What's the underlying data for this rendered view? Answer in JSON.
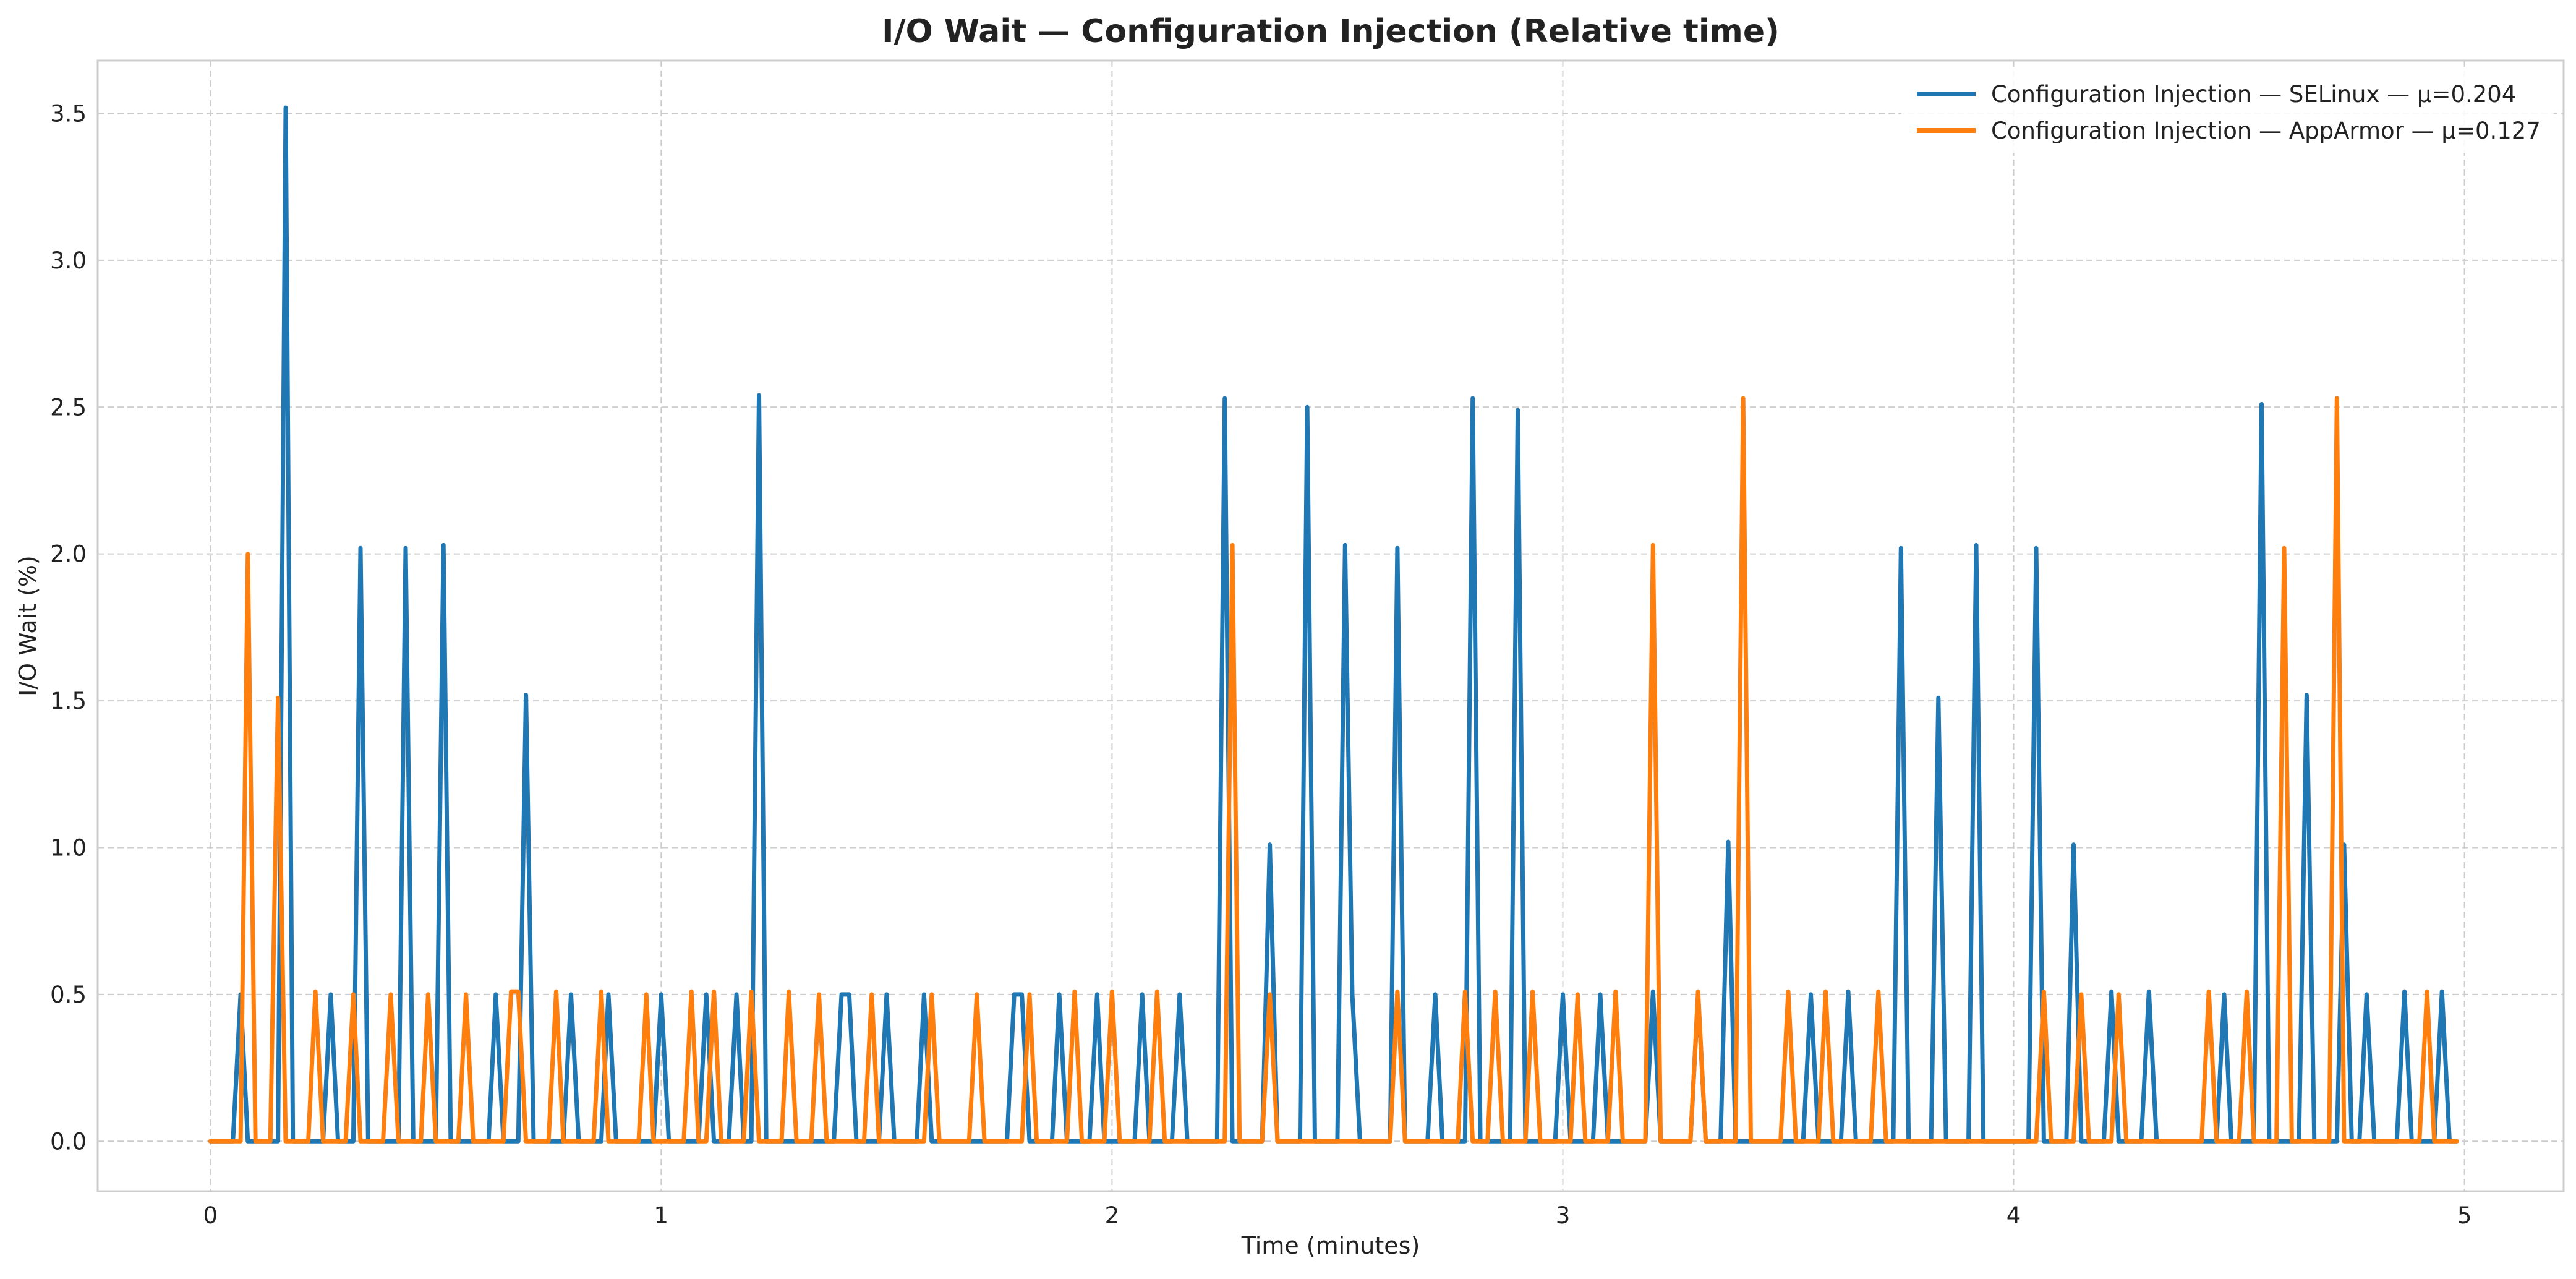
{
  "chart_data": {
    "type": "line",
    "title": "I/O Wait — Configuration Injection (Relative time)",
    "xlabel": "Time (minutes)",
    "ylabel": "I/O Wait (%)",
    "xlim": [
      -0.25,
      5.22
    ],
    "ylim": [
      -0.17,
      3.68
    ],
    "xticks": [
      0,
      1,
      2,
      3,
      4,
      5
    ],
    "xtick_labels": [
      "0",
      "1",
      "2",
      "3",
      "4",
      "5"
    ],
    "yticks": [
      0.0,
      0.5,
      1.0,
      1.5,
      2.0,
      2.5,
      3.0,
      3.5
    ],
    "ytick_labels": [
      "0.0",
      "0.5",
      "1.0",
      "1.5",
      "2.0",
      "2.5",
      "3.0",
      "3.5"
    ],
    "grid": true,
    "legend_position": "top-right",
    "series": [
      {
        "name": "Configuration Injection — SELinux — μ=0.204",
        "color": "#1f77b4",
        "points": [
          [
            0.0,
            0
          ],
          [
            0.05,
            0
          ],
          [
            0.067,
            0.5
          ],
          [
            0.083,
            0
          ],
          [
            0.15,
            0
          ],
          [
            0.167,
            3.52
          ],
          [
            0.183,
            0
          ],
          [
            0.25,
            0
          ],
          [
            0.267,
            0.5
          ],
          [
            0.283,
            0
          ],
          [
            0.317,
            0
          ],
          [
            0.333,
            2.02
          ],
          [
            0.35,
            0
          ],
          [
            0.417,
            0
          ],
          [
            0.433,
            2.02
          ],
          [
            0.45,
            0
          ],
          [
            0.5,
            0
          ],
          [
            0.517,
            2.03
          ],
          [
            0.533,
            0
          ],
          [
            0.617,
            0
          ],
          [
            0.633,
            0.5
          ],
          [
            0.65,
            0
          ],
          [
            0.683,
            0
          ],
          [
            0.7,
            1.52
          ],
          [
            0.717,
            0
          ],
          [
            0.783,
            0
          ],
          [
            0.8,
            0.5
          ],
          [
            0.817,
            0
          ],
          [
            0.867,
            0
          ],
          [
            0.883,
            0.5
          ],
          [
            0.9,
            0
          ],
          [
            0.983,
            0
          ],
          [
            1.0,
            0.5
          ],
          [
            1.017,
            0
          ],
          [
            1.083,
            0
          ],
          [
            1.1,
            0.5
          ],
          [
            1.117,
            0
          ],
          [
            1.15,
            0
          ],
          [
            1.167,
            0.5
          ],
          [
            1.183,
            0
          ],
          [
            1.2,
            0
          ],
          [
            1.217,
            2.54
          ],
          [
            1.233,
            0
          ],
          [
            1.383,
            0
          ],
          [
            1.4,
            0.5
          ],
          [
            1.417,
            0.5
          ],
          [
            1.433,
            0
          ],
          [
            1.483,
            0
          ],
          [
            1.5,
            0.5
          ],
          [
            1.517,
            0
          ],
          [
            1.567,
            0
          ],
          [
            1.583,
            0.5
          ],
          [
            1.6,
            0
          ],
          [
            1.767,
            0
          ],
          [
            1.783,
            0.5
          ],
          [
            1.8,
            0.5
          ],
          [
            1.817,
            0
          ],
          [
            1.867,
            0
          ],
          [
            1.883,
            0.5
          ],
          [
            1.9,
            0
          ],
          [
            1.95,
            0
          ],
          [
            1.967,
            0.5
          ],
          [
            1.983,
            0
          ],
          [
            2.05,
            0
          ],
          [
            2.067,
            0.5
          ],
          [
            2.083,
            0
          ],
          [
            2.133,
            0
          ],
          [
            2.15,
            0.5
          ],
          [
            2.167,
            0
          ],
          [
            2.233,
            0
          ],
          [
            2.25,
            2.53
          ],
          [
            2.267,
            0
          ],
          [
            2.333,
            0
          ],
          [
            2.35,
            1.01
          ],
          [
            2.367,
            0
          ],
          [
            2.417,
            0
          ],
          [
            2.433,
            2.5
          ],
          [
            2.45,
            0
          ],
          [
            2.5,
            0
          ],
          [
            2.517,
            2.03
          ],
          [
            2.533,
            0.5
          ],
          [
            2.55,
            0
          ],
          [
            2.617,
            0
          ],
          [
            2.633,
            2.02
          ],
          [
            2.65,
            0
          ],
          [
            2.7,
            0
          ],
          [
            2.717,
            0.5
          ],
          [
            2.733,
            0
          ],
          [
            2.783,
            0
          ],
          [
            2.8,
            2.53
          ],
          [
            2.817,
            0
          ],
          [
            2.883,
            0
          ],
          [
            2.9,
            2.49
          ],
          [
            2.917,
            0
          ],
          [
            2.983,
            0
          ],
          [
            3.0,
            0.5
          ],
          [
            3.017,
            0
          ],
          [
            3.067,
            0
          ],
          [
            3.083,
            0.5
          ],
          [
            3.1,
            0
          ],
          [
            3.183,
            0
          ],
          [
            3.2,
            0.51
          ],
          [
            3.217,
            0
          ],
          [
            3.283,
            0
          ],
          [
            3.3,
            0.5
          ],
          [
            3.317,
            0
          ],
          [
            3.35,
            0
          ],
          [
            3.367,
            1.02
          ],
          [
            3.383,
            0
          ],
          [
            3.533,
            0
          ],
          [
            3.55,
            0.5
          ],
          [
            3.567,
            0
          ],
          [
            3.617,
            0
          ],
          [
            3.633,
            0.51
          ],
          [
            3.65,
            0
          ],
          [
            3.733,
            0
          ],
          [
            3.75,
            2.02
          ],
          [
            3.767,
            0
          ],
          [
            3.817,
            0
          ],
          [
            3.833,
            1.51
          ],
          [
            3.85,
            0
          ],
          [
            3.9,
            0
          ],
          [
            3.917,
            2.03
          ],
          [
            3.933,
            0
          ],
          [
            4.033,
            0
          ],
          [
            4.05,
            2.02
          ],
          [
            4.067,
            0
          ],
          [
            4.117,
            0
          ],
          [
            4.133,
            1.01
          ],
          [
            4.15,
            0
          ],
          [
            4.2,
            0
          ],
          [
            4.217,
            0.51
          ],
          [
            4.233,
            0
          ],
          [
            4.283,
            0
          ],
          [
            4.3,
            0.51
          ],
          [
            4.317,
            0
          ],
          [
            4.45,
            0
          ],
          [
            4.467,
            0.5
          ],
          [
            4.483,
            0
          ],
          [
            4.533,
            0
          ],
          [
            4.55,
            2.51
          ],
          [
            4.567,
            0
          ],
          [
            4.633,
            0
          ],
          [
            4.65,
            1.52
          ],
          [
            4.667,
            0
          ],
          [
            4.717,
            0
          ],
          [
            4.733,
            1.01
          ],
          [
            4.75,
            0
          ],
          [
            4.767,
            0
          ],
          [
            4.783,
            0.5
          ],
          [
            4.8,
            0
          ],
          [
            4.85,
            0
          ],
          [
            4.867,
            0.51
          ],
          [
            4.883,
            0
          ],
          [
            4.933,
            0
          ],
          [
            4.95,
            0.51
          ],
          [
            4.967,
            0
          ],
          [
            4.983,
            0
          ]
        ]
      },
      {
        "name": "Configuration Injection — AppArmor — μ=0.127",
        "color": "#ff7f0e",
        "points": [
          [
            0.0,
            0
          ],
          [
            0.067,
            0
          ],
          [
            0.083,
            2.0
          ],
          [
            0.1,
            0
          ],
          [
            0.133,
            0
          ],
          [
            0.15,
            1.51
          ],
          [
            0.167,
            0
          ],
          [
            0.217,
            0
          ],
          [
            0.233,
            0.51
          ],
          [
            0.25,
            0
          ],
          [
            0.3,
            0
          ],
          [
            0.317,
            0.5
          ],
          [
            0.333,
            0
          ],
          [
            0.383,
            0
          ],
          [
            0.4,
            0.5
          ],
          [
            0.417,
            0
          ],
          [
            0.467,
            0
          ],
          [
            0.483,
            0.5
          ],
          [
            0.5,
            0
          ],
          [
            0.55,
            0
          ],
          [
            0.567,
            0.5
          ],
          [
            0.583,
            0
          ],
          [
            0.65,
            0
          ],
          [
            0.667,
            0.51
          ],
          [
            0.683,
            0.51
          ],
          [
            0.7,
            0
          ],
          [
            0.75,
            0
          ],
          [
            0.767,
            0.51
          ],
          [
            0.783,
            0
          ],
          [
            0.85,
            0
          ],
          [
            0.867,
            0.51
          ],
          [
            0.883,
            0
          ],
          [
            0.95,
            0
          ],
          [
            0.967,
            0.5
          ],
          [
            0.983,
            0
          ],
          [
            1.05,
            0
          ],
          [
            1.067,
            0.51
          ],
          [
            1.083,
            0
          ],
          [
            1.1,
            0
          ],
          [
            1.117,
            0.51
          ],
          [
            1.133,
            0
          ],
          [
            1.183,
            0
          ],
          [
            1.2,
            0.51
          ],
          [
            1.217,
            0
          ],
          [
            1.267,
            0
          ],
          [
            1.283,
            0.51
          ],
          [
            1.3,
            0
          ],
          [
            1.333,
            0
          ],
          [
            1.35,
            0.5
          ],
          [
            1.367,
            0
          ],
          [
            1.45,
            0
          ],
          [
            1.467,
            0.5
          ],
          [
            1.483,
            0
          ],
          [
            1.583,
            0
          ],
          [
            1.6,
            0.5
          ],
          [
            1.617,
            0
          ],
          [
            1.683,
            0
          ],
          [
            1.7,
            0.5
          ],
          [
            1.717,
            0
          ],
          [
            1.8,
            0
          ],
          [
            1.817,
            0.5
          ],
          [
            1.833,
            0
          ],
          [
            1.9,
            0
          ],
          [
            1.917,
            0.51
          ],
          [
            1.933,
            0
          ],
          [
            1.983,
            0
          ],
          [
            2.0,
            0.51
          ],
          [
            2.017,
            0
          ],
          [
            2.083,
            0
          ],
          [
            2.1,
            0.51
          ],
          [
            2.117,
            0
          ],
          [
            2.25,
            0
          ],
          [
            2.267,
            2.03
          ],
          [
            2.283,
            0
          ],
          [
            2.333,
            0
          ],
          [
            2.35,
            0.5
          ],
          [
            2.367,
            0
          ],
          [
            2.617,
            0
          ],
          [
            2.633,
            0.51
          ],
          [
            2.65,
            0
          ],
          [
            2.767,
            0
          ],
          [
            2.783,
            0.51
          ],
          [
            2.8,
            0
          ],
          [
            2.833,
            0
          ],
          [
            2.85,
            0.51
          ],
          [
            2.867,
            0
          ],
          [
            2.917,
            0
          ],
          [
            2.933,
            0.51
          ],
          [
            2.95,
            0
          ],
          [
            3.017,
            0
          ],
          [
            3.033,
            0.5
          ],
          [
            3.05,
            0
          ],
          [
            3.1,
            0
          ],
          [
            3.117,
            0.51
          ],
          [
            3.133,
            0
          ],
          [
            3.183,
            0
          ],
          [
            3.2,
            2.03
          ],
          [
            3.217,
            0
          ],
          [
            3.283,
            0
          ],
          [
            3.3,
            0.51
          ],
          [
            3.317,
            0
          ],
          [
            3.383,
            0
          ],
          [
            3.4,
            2.53
          ],
          [
            3.417,
            0
          ],
          [
            3.483,
            0
          ],
          [
            3.5,
            0.51
          ],
          [
            3.517,
            0
          ],
          [
            3.567,
            0
          ],
          [
            3.583,
            0.51
          ],
          [
            3.6,
            0
          ],
          [
            3.683,
            0
          ],
          [
            3.7,
            0.51
          ],
          [
            3.717,
            0
          ],
          [
            4.05,
            0
          ],
          [
            4.067,
            0.51
          ],
          [
            4.083,
            0
          ],
          [
            4.133,
            0
          ],
          [
            4.15,
            0.5
          ],
          [
            4.167,
            0
          ],
          [
            4.217,
            0
          ],
          [
            4.233,
            0.5
          ],
          [
            4.25,
            0
          ],
          [
            4.417,
            0
          ],
          [
            4.433,
            0.51
          ],
          [
            4.45,
            0
          ],
          [
            4.5,
            0
          ],
          [
            4.517,
            0.51
          ],
          [
            4.533,
            0
          ],
          [
            4.583,
            0
          ],
          [
            4.6,
            2.02
          ],
          [
            4.617,
            0
          ],
          [
            4.7,
            0
          ],
          [
            4.717,
            2.53
          ],
          [
            4.733,
            0
          ],
          [
            4.9,
            0
          ],
          [
            4.917,
            0.51
          ],
          [
            4.933,
            0
          ],
          [
            4.983,
            0
          ]
        ]
      }
    ]
  }
}
